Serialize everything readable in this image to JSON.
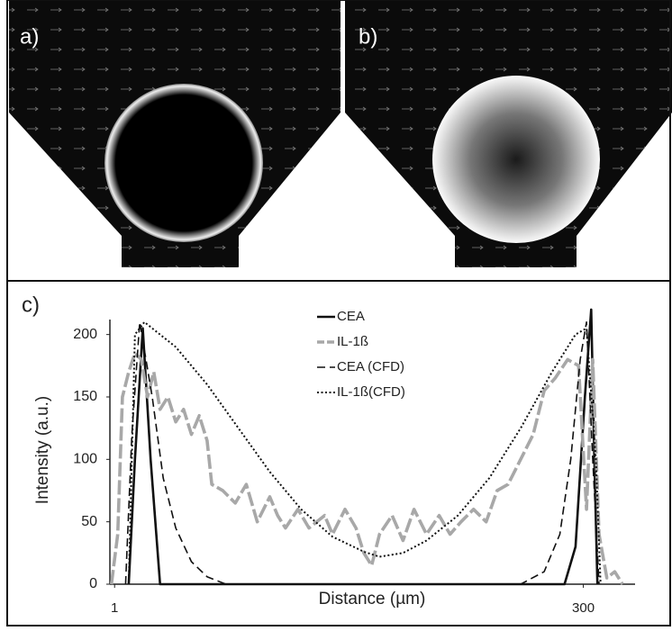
{
  "panel_labels": [
    "a)",
    "b)"
  ],
  "chart_data": {
    "type": "line",
    "panel_label": "c)",
    "x_label": "Distance (µm)",
    "y_label": "Intensity (a.u.)",
    "xlim": [
      -2,
      333
    ],
    "xticks": [
      1,
      300
    ],
    "ylim": [
      0,
      212
    ],
    "yticks": [
      0,
      50,
      100,
      150,
      200
    ],
    "grid": false,
    "legend": "top",
    "series": [
      {
        "name": "CEA",
        "color": "#111111",
        "dash": "solid",
        "x": [
          10,
          14,
          19,
          24,
          30,
          288,
          295,
          301,
          305,
          307,
          309
        ],
        "values": [
          0,
          100,
          205,
          100,
          0,
          0,
          30,
          150,
          220,
          100,
          0
        ]
      },
      {
        "name": "IL-1ß",
        "color": "#a8a8a8",
        "dash": "long-dash",
        "x": [
          -1,
          3,
          6,
          10,
          14,
          18,
          22,
          26,
          30,
          35,
          40,
          45,
          50,
          55,
          60,
          63,
          70,
          78,
          85,
          92,
          100,
          105,
          110,
          118,
          125,
          135,
          140,
          148,
          155,
          160,
          165,
          170,
          178,
          185,
          192,
          200,
          208,
          215,
          222,
          230,
          238,
          245,
          252,
          260,
          268,
          275,
          282,
          290,
          297,
          302,
          306,
          310,
          315,
          320,
          325
        ],
        "values": [
          0,
          40,
          150,
          170,
          185,
          180,
          150,
          170,
          140,
          150,
          130,
          140,
          120,
          135,
          115,
          80,
          75,
          65,
          80,
          50,
          70,
          55,
          45,
          60,
          45,
          55,
          40,
          60,
          45,
          25,
          15,
          40,
          55,
          35,
          60,
          40,
          55,
          40,
          50,
          60,
          50,
          75,
          80,
          100,
          120,
          155,
          165,
          180,
          175,
          60,
          180,
          40,
          5,
          10,
          0
        ]
      },
      {
        "name": "CEA (CFD)",
        "color": "#111111",
        "dash": "dash",
        "x": [
          8,
          12,
          17,
          25,
          32,
          40,
          50,
          60,
          72,
          260,
          275,
          285,
          292,
          298,
          302,
          306,
          310
        ],
        "values": [
          0,
          120,
          210,
          150,
          85,
          45,
          18,
          6,
          0,
          0,
          10,
          40,
          100,
          180,
          210,
          100,
          0
        ]
      },
      {
        "name": "IL-1ß(CFD)",
        "color": "#111111",
        "dash": "dot",
        "x": [
          10,
          14,
          20,
          40,
          60,
          80,
          100,
          120,
          140,
          160,
          170,
          185,
          200,
          220,
          240,
          260,
          280,
          295,
          302,
          308,
          311
        ],
        "values": [
          0,
          200,
          210,
          190,
          160,
          125,
          90,
          60,
          38,
          26,
          22,
          25,
          35,
          55,
          85,
          125,
          170,
          200,
          205,
          100,
          0
        ]
      }
    ]
  }
}
